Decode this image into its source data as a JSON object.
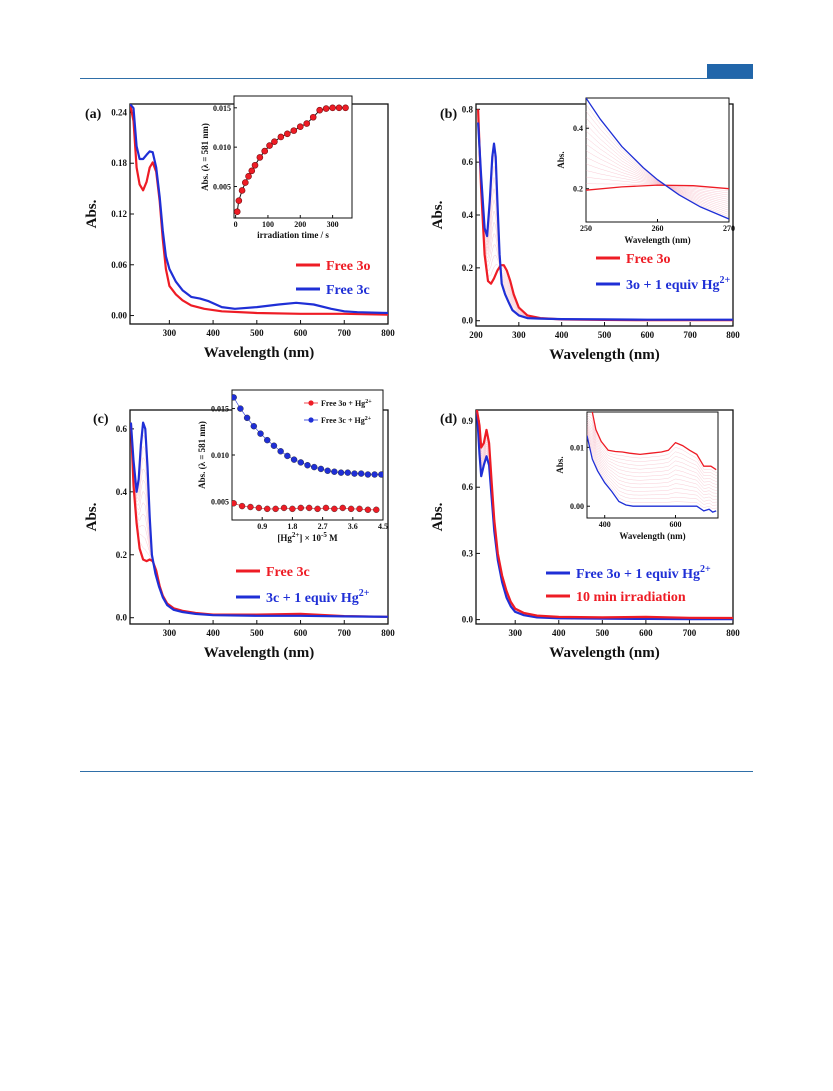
{
  "colors": {
    "red": "#ee1c25",
    "blue": "#1f2fd6",
    "pink": "#f2a3b3",
    "header": "#2166aa"
  },
  "chart_data": [
    {
      "panel": "(a)",
      "type": "line",
      "xlabel": "Wavelength (nm)",
      "ylabel": "Abs.",
      "xlim": [
        210,
        800
      ],
      "ylim": [
        -0.01,
        0.25
      ],
      "xticks": [
        300,
        400,
        500,
        600,
        700,
        800
      ],
      "yticks": [
        0.0,
        0.06,
        0.12,
        0.18,
        0.24
      ],
      "ytick_labels": [
        "0.00",
        "0.06",
        "0.12",
        "0.18",
        "0.24"
      ],
      "series": [
        {
          "name": "Free 3o",
          "color": "#ee1c25",
          "x": [
            210,
            218,
            225,
            232,
            240,
            248,
            255,
            262,
            270,
            278,
            285,
            292,
            300,
            315,
            330,
            350,
            380,
            420,
            500,
            600,
            700,
            800
          ],
          "y": [
            0.25,
            0.23,
            0.175,
            0.155,
            0.148,
            0.158,
            0.175,
            0.181,
            0.17,
            0.135,
            0.09,
            0.055,
            0.035,
            0.025,
            0.018,
            0.012,
            0.008,
            0.005,
            0.003,
            0.002,
            0.002,
            0.001
          ]
        },
        {
          "name": "Free 3c",
          "color": "#1f2fd6",
          "x": [
            210,
            218,
            225,
            232,
            240,
            248,
            255,
            262,
            270,
            278,
            285,
            292,
            300,
            315,
            330,
            350,
            370,
            390,
            420,
            450,
            500,
            550,
            590,
            630,
            670,
            700,
            730,
            800
          ],
          "y": [
            0.25,
            0.245,
            0.2,
            0.185,
            0.185,
            0.19,
            0.194,
            0.193,
            0.175,
            0.14,
            0.1,
            0.07,
            0.055,
            0.04,
            0.03,
            0.022,
            0.02,
            0.017,
            0.01,
            0.008,
            0.01,
            0.013,
            0.015,
            0.013,
            0.008,
            0.005,
            0.004,
            0.003
          ]
        }
      ],
      "inset": {
        "type": "scatter",
        "xlabel": "irradiation time / s",
        "ylabel": "Abs. (λ = 581 nm)",
        "xlim": [
          -5,
          360
        ],
        "ylim": [
          0.001,
          0.0165
        ],
        "xticks": [
          0,
          100,
          200,
          300
        ],
        "yticks": [
          0.005,
          0.01,
          0.015
        ],
        "ytick_labels": [
          "0.005",
          "0.010",
          "0.015"
        ],
        "x": [
          5,
          10,
          20,
          30,
          40,
          50,
          60,
          75,
          90,
          105,
          120,
          140,
          160,
          180,
          200,
          220,
          240,
          260,
          280,
          300,
          320,
          340
        ],
        "y": [
          0.0018,
          0.0032,
          0.0045,
          0.0055,
          0.0063,
          0.007,
          0.0077,
          0.0087,
          0.0095,
          0.0102,
          0.0107,
          0.0113,
          0.0117,
          0.0121,
          0.0126,
          0.013,
          0.0138,
          0.0147,
          0.0149,
          0.015,
          0.015,
          0.015
        ]
      }
    },
    {
      "panel": "(b)",
      "type": "line",
      "xlabel": "Wavelength (nm)",
      "ylabel": "Abs.",
      "xlim": [
        200,
        800
      ],
      "ylim": [
        -0.02,
        0.82
      ],
      "xticks": [
        200,
        300,
        400,
        500,
        600,
        700,
        800
      ],
      "yticks": [
        0.0,
        0.2,
        0.4,
        0.6,
        0.8
      ],
      "ytick_labels": [
        "0.0",
        "0.2",
        "0.4",
        "0.6",
        "0.8"
      ],
      "series": [
        {
          "name": "Free 3o",
          "color": "#ee1c25",
          "x": [
            205,
            212,
            220,
            228,
            235,
            242,
            250,
            258,
            265,
            272,
            280,
            288,
            300,
            320,
            350,
            400,
            500,
            600,
            700,
            800
          ],
          "y": [
            0.8,
            0.5,
            0.25,
            0.15,
            0.14,
            0.16,
            0.19,
            0.21,
            0.21,
            0.19,
            0.15,
            0.1,
            0.05,
            0.02,
            0.01,
            0.005,
            0.003,
            0.002,
            0.002,
            0.002
          ]
        },
        {
          "name": "3o + 1 equiv Hg",
          "superscript": "2+",
          "color": "#1f2fd6",
          "x": [
            205,
            212,
            220,
            226,
            232,
            238,
            242,
            246,
            250,
            255,
            260,
            268,
            276,
            285,
            300,
            320,
            350,
            400,
            500,
            600,
            700,
            800
          ],
          "y": [
            0.75,
            0.55,
            0.35,
            0.32,
            0.45,
            0.62,
            0.67,
            0.62,
            0.45,
            0.25,
            0.14,
            0.1,
            0.07,
            0.04,
            0.02,
            0.01,
            0.008,
            0.006,
            0.005,
            0.004,
            0.004,
            0.004
          ]
        }
      ],
      "inset": {
        "type": "line",
        "xlabel": "Wavelength (nm)",
        "ylabel": "Abs.",
        "xlim": [
          250,
          270
        ],
        "ylim": [
          0.09,
          0.5
        ],
        "xticks": [
          250,
          260,
          270
        ],
        "yticks": [
          0.2,
          0.4
        ],
        "ytick_labels": [
          "0.2",
          "0.4"
        ],
        "series": [
          {
            "color": "#ee1c25",
            "x": [
              250,
              255,
              260,
              265,
              270
            ],
            "y": [
              0.195,
              0.206,
              0.212,
              0.21,
              0.2
            ]
          },
          {
            "color": "#1f2fd6",
            "x": [
              250,
              252,
              255,
              258,
              260,
              263,
              266,
              270
            ],
            "y": [
              0.5,
              0.43,
              0.34,
              0.27,
              0.23,
              0.18,
              0.14,
              0.1
            ]
          }
        ]
      }
    },
    {
      "panel": "(c)",
      "type": "line",
      "xlabel": "Wavelength (nm)",
      "ylabel": "Abs.",
      "xlim": [
        210,
        800
      ],
      "ylim": [
        -0.02,
        0.66
      ],
      "xticks": [
        300,
        400,
        500,
        600,
        700,
        800
      ],
      "yticks": [
        0.0,
        0.2,
        0.4,
        0.6
      ],
      "ytick_labels": [
        "0.0",
        "0.2",
        "0.4",
        "0.6"
      ],
      "series": [
        {
          "name": "Free 3c",
          "color": "#ee1c25",
          "x": [
            212,
            218,
            225,
            232,
            240,
            248,
            255,
            262,
            270,
            278,
            285,
            295,
            310,
            330,
            360,
            400,
            500,
            600,
            700,
            800
          ],
          "y": [
            0.62,
            0.42,
            0.3,
            0.22,
            0.185,
            0.18,
            0.185,
            0.18,
            0.15,
            0.1,
            0.07,
            0.045,
            0.03,
            0.022,
            0.015,
            0.01,
            0.01,
            0.012,
            0.005,
            0.003
          ]
        },
        {
          "name": "3c + 1 equiv Hg",
          "superscript": "2+",
          "color": "#1f2fd6",
          "x": [
            212,
            218,
            225,
            230,
            235,
            240,
            245,
            250,
            255,
            260,
            268,
            276,
            285,
            295,
            310,
            330,
            360,
            400,
            500,
            600,
            700,
            800
          ],
          "y": [
            0.62,
            0.5,
            0.4,
            0.44,
            0.55,
            0.62,
            0.6,
            0.48,
            0.32,
            0.2,
            0.14,
            0.1,
            0.065,
            0.04,
            0.025,
            0.018,
            0.012,
            0.008,
            0.006,
            0.006,
            0.004,
            0.003
          ]
        }
      ],
      "inset": {
        "type": "scatter",
        "xlabel": "[Hg2+] × 10-5 M",
        "ylabel": "Abs. (λ = 581 nm)",
        "xlim": [
          0,
          4.5
        ],
        "ylim": [
          0.003,
          0.017
        ],
        "xticks": [
          0.9,
          1.8,
          2.7,
          3.6,
          4.5
        ],
        "yticks": [
          0.005,
          0.01,
          0.015
        ],
        "ytick_labels": [
          "0.005",
          "0.010",
          "0.015"
        ],
        "series": [
          {
            "name": "Free 3o + Hg2+",
            "color": "#ee1c25",
            "x": [
              0.05,
              0.3,
              0.55,
              0.8,
              1.05,
              1.3,
              1.55,
              1.8,
              2.05,
              2.3,
              2.55,
              2.8,
              3.05,
              3.3,
              3.55,
              3.8,
              4.05,
              4.3
            ],
            "y": [
              0.0048,
              0.0045,
              0.0044,
              0.0043,
              0.0042,
              0.0042,
              0.0043,
              0.0042,
              0.0043,
              0.0043,
              0.0042,
              0.0043,
              0.0042,
              0.0043,
              0.0042,
              0.0042,
              0.0041,
              0.0041
            ]
          },
          {
            "name": "Free 3c + Hg2+",
            "color": "#1f2fd6",
            "x": [
              0.05,
              0.25,
              0.45,
              0.65,
              0.85,
              1.05,
              1.25,
              1.45,
              1.65,
              1.85,
              2.05,
              2.25,
              2.45,
              2.65,
              2.85,
              3.05,
              3.25,
              3.45,
              3.65,
              3.85,
              4.05,
              4.25,
              4.45
            ],
            "y": [
              0.0162,
              0.015,
              0.014,
              0.0131,
              0.0123,
              0.0116,
              0.011,
              0.0104,
              0.0099,
              0.0095,
              0.0092,
              0.0089,
              0.0087,
              0.0085,
              0.0083,
              0.0082,
              0.0081,
              0.0081,
              0.008,
              0.008,
              0.0079,
              0.0079,
              0.0079
            ]
          }
        ]
      }
    },
    {
      "panel": "(d)",
      "type": "line",
      "xlabel": "Wavelength (nm)",
      "ylabel": "Abs.",
      "xlim": [
        210,
        800
      ],
      "ylim": [
        -0.02,
        0.95
      ],
      "xticks": [
        300,
        400,
        500,
        600,
        700,
        800
      ],
      "yticks": [
        0.0,
        0.3,
        0.6,
        0.9
      ],
      "ytick_labels": [
        "0.0",
        "0.3",
        "0.6",
        "0.9"
      ],
      "series": [
        {
          "name": "Free 3o + 1 equiv Hg",
          "superscript": "2+",
          "color": "#1f2fd6",
          "x": [
            212,
            218,
            222,
            228,
            234,
            240,
            246,
            252,
            260,
            270,
            280,
            290,
            300,
            320,
            350,
            400,
            500,
            600,
            700,
            800
          ],
          "y": [
            0.95,
            0.75,
            0.65,
            0.7,
            0.74,
            0.7,
            0.55,
            0.4,
            0.27,
            0.17,
            0.1,
            0.06,
            0.035,
            0.02,
            0.01,
            0.006,
            0.004,
            0.003,
            0.002,
            0.002
          ]
        },
        {
          "name": "10 min irradiation",
          "color": "#ee1c25",
          "x": [
            212,
            218,
            222,
            228,
            234,
            240,
            246,
            252,
            260,
            270,
            280,
            290,
            300,
            320,
            350,
            400,
            500,
            600,
            700,
            800
          ],
          "y": [
            0.95,
            0.88,
            0.78,
            0.8,
            0.86,
            0.8,
            0.62,
            0.45,
            0.3,
            0.2,
            0.13,
            0.08,
            0.05,
            0.03,
            0.018,
            0.012,
            0.01,
            0.012,
            0.008,
            0.007
          ]
        }
      ],
      "inset": {
        "type": "line",
        "xlabel": "Wavelength (nm)",
        "ylabel": "Abs.",
        "xlim": [
          350,
          720
        ],
        "ylim": [
          -0.002,
          0.016
        ],
        "xticks": [
          400,
          600
        ],
        "yticks": [
          0.0,
          0.01
        ],
        "ytick_labels": [
          "0.00",
          "0.01"
        ],
        "series": [
          {
            "color": "#ee1c25",
            "x": [
              365,
              375,
              390,
              410,
              430,
              450,
              470,
              500,
              530,
              560,
              580,
              600,
              620,
              640,
              660,
              680,
              700,
              715
            ],
            "y": [
              0.016,
              0.013,
              0.011,
              0.0095,
              0.0093,
              0.0092,
              0.009,
              0.0088,
              0.009,
              0.0092,
              0.0095,
              0.0108,
              0.0103,
              0.0095,
              0.0088,
              0.0068,
              0.0068,
              0.0062
            ]
          },
          {
            "color": "#1f2fd6",
            "x": [
              350,
              365,
              380,
              400,
              420,
              440,
              460,
              480,
              500,
              540,
              580,
              620,
              660,
              680,
              695,
              705,
              715
            ],
            "y": [
              0.012,
              0.008,
              0.006,
              0.004,
              0.0025,
              0.0008,
              0.0002,
              0.0,
              0.0,
              0.0,
              0.0,
              0.0,
              0.0,
              -0.0008,
              -0.0005,
              -0.001,
              -0.0008
            ]
          }
        ]
      }
    }
  ]
}
